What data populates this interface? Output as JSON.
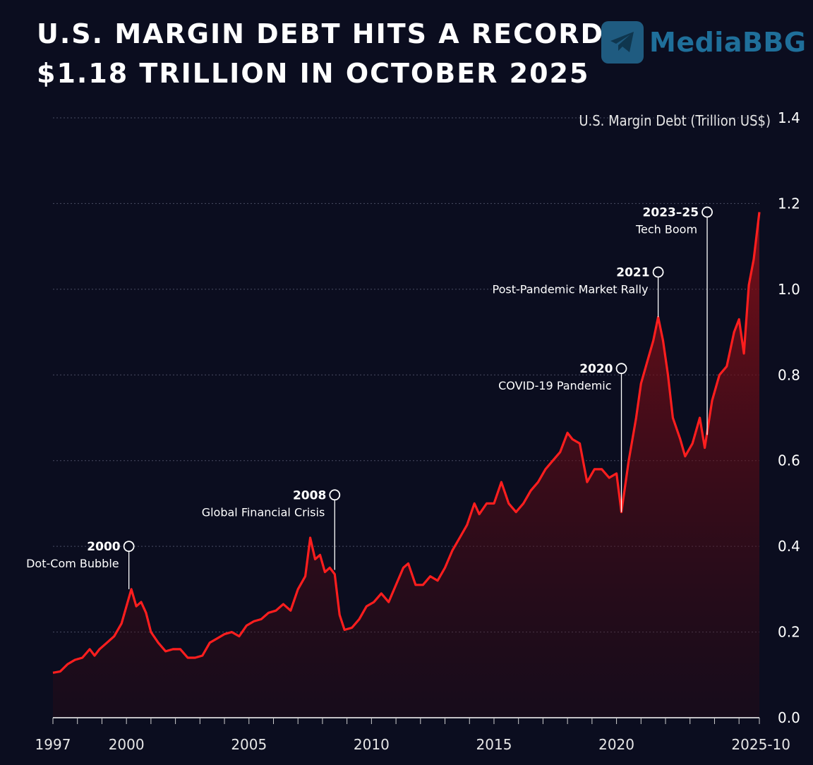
{
  "header": {
    "title_line1": "U.S. MARGIN DEBT HITS A RECORD",
    "title_line2": "$1.18 TRILLION IN OCTOBER 2025"
  },
  "logo": {
    "text": "MediaBBG",
    "icon": "telegram-plane-icon",
    "color": "#1f6f9a"
  },
  "colors": {
    "background": "#0b0d1f",
    "line": "#ff1e1e",
    "fill": "#7a0d14",
    "grid": "#4a4d63"
  },
  "chart_data": {
    "type": "area",
    "title": "U.S. MARGIN DEBT HITS A RECORD $1.18 TRILLION IN OCTOBER 2025",
    "ylabel": "U.S. Margin Debt (Trillion US$)",
    "ylim": [
      0,
      1.4
    ],
    "xlim": [
      1997,
      2025.83
    ],
    "yticks": [
      "0.0",
      "0.2",
      "0.4",
      "0.6",
      "0.8",
      "1.0",
      "1.2",
      "1.4"
    ],
    "xticks": [
      {
        "value": 1997,
        "label": "1997"
      },
      {
        "value": 2000,
        "label": "2000"
      },
      {
        "value": 2005,
        "label": "2005"
      },
      {
        "value": 2010,
        "label": "2010"
      },
      {
        "value": 2015,
        "label": "2015"
      },
      {
        "value": 2020,
        "label": "2020"
      },
      {
        "value": 2025.83,
        "label": "2025-10"
      }
    ],
    "grid": true,
    "series": [
      {
        "points": [
          [
            1997.0,
            0.105
          ],
          [
            1997.3,
            0.108
          ],
          [
            1997.6,
            0.125
          ],
          [
            1997.9,
            0.135
          ],
          [
            1998.2,
            0.14
          ],
          [
            1998.5,
            0.16
          ],
          [
            1998.7,
            0.145
          ],
          [
            1998.9,
            0.16
          ],
          [
            1999.2,
            0.175
          ],
          [
            1999.5,
            0.19
          ],
          [
            1999.8,
            0.22
          ],
          [
            2000.0,
            0.26
          ],
          [
            2000.2,
            0.3
          ],
          [
            2000.4,
            0.26
          ],
          [
            2000.6,
            0.27
          ],
          [
            2000.8,
            0.245
          ],
          [
            2001.0,
            0.2
          ],
          [
            2001.3,
            0.175
          ],
          [
            2001.6,
            0.155
          ],
          [
            2001.9,
            0.16
          ],
          [
            2002.2,
            0.16
          ],
          [
            2002.5,
            0.14
          ],
          [
            2002.8,
            0.14
          ],
          [
            2003.1,
            0.145
          ],
          [
            2003.4,
            0.175
          ],
          [
            2003.7,
            0.185
          ],
          [
            2004.0,
            0.195
          ],
          [
            2004.3,
            0.2
          ],
          [
            2004.6,
            0.19
          ],
          [
            2004.9,
            0.215
          ],
          [
            2005.2,
            0.225
          ],
          [
            2005.5,
            0.23
          ],
          [
            2005.8,
            0.245
          ],
          [
            2006.1,
            0.25
          ],
          [
            2006.4,
            0.265
          ],
          [
            2006.7,
            0.25
          ],
          [
            2007.0,
            0.3
          ],
          [
            2007.3,
            0.33
          ],
          [
            2007.5,
            0.42
          ],
          [
            2007.7,
            0.37
          ],
          [
            2007.9,
            0.38
          ],
          [
            2008.1,
            0.34
          ],
          [
            2008.3,
            0.35
          ],
          [
            2008.5,
            0.335
          ],
          [
            2008.7,
            0.24
          ],
          [
            2008.9,
            0.205
          ],
          [
            2009.2,
            0.21
          ],
          [
            2009.5,
            0.23
          ],
          [
            2009.8,
            0.26
          ],
          [
            2010.1,
            0.27
          ],
          [
            2010.4,
            0.29
          ],
          [
            2010.7,
            0.27
          ],
          [
            2011.0,
            0.31
          ],
          [
            2011.3,
            0.35
          ],
          [
            2011.5,
            0.36
          ],
          [
            2011.8,
            0.31
          ],
          [
            2012.1,
            0.31
          ],
          [
            2012.4,
            0.33
          ],
          [
            2012.7,
            0.32
          ],
          [
            2013.0,
            0.35
          ],
          [
            2013.3,
            0.39
          ],
          [
            2013.6,
            0.42
          ],
          [
            2013.9,
            0.45
          ],
          [
            2014.2,
            0.5
          ],
          [
            2014.4,
            0.475
          ],
          [
            2014.7,
            0.5
          ],
          [
            2015.0,
            0.5
          ],
          [
            2015.3,
            0.55
          ],
          [
            2015.6,
            0.5
          ],
          [
            2015.9,
            0.48
          ],
          [
            2016.2,
            0.5
          ],
          [
            2016.5,
            0.53
          ],
          [
            2016.8,
            0.55
          ],
          [
            2017.1,
            0.58
          ],
          [
            2017.4,
            0.6
          ],
          [
            2017.7,
            0.62
          ],
          [
            2018.0,
            0.665
          ],
          [
            2018.2,
            0.65
          ],
          [
            2018.5,
            0.64
          ],
          [
            2018.8,
            0.55
          ],
          [
            2019.1,
            0.58
          ],
          [
            2019.4,
            0.58
          ],
          [
            2019.7,
            0.56
          ],
          [
            2020.0,
            0.57
          ],
          [
            2020.2,
            0.48
          ],
          [
            2020.5,
            0.6
          ],
          [
            2020.8,
            0.7
          ],
          [
            2021.0,
            0.78
          ],
          [
            2021.3,
            0.84
          ],
          [
            2021.5,
            0.88
          ],
          [
            2021.7,
            0.935
          ],
          [
            2021.9,
            0.88
          ],
          [
            2022.1,
            0.8
          ],
          [
            2022.3,
            0.7
          ],
          [
            2022.6,
            0.65
          ],
          [
            2022.8,
            0.61
          ],
          [
            2023.1,
            0.64
          ],
          [
            2023.4,
            0.7
          ],
          [
            2023.6,
            0.63
          ],
          [
            2023.9,
            0.74
          ],
          [
            2024.2,
            0.8
          ],
          [
            2024.5,
            0.82
          ],
          [
            2024.8,
            0.9
          ],
          [
            2025.0,
            0.93
          ],
          [
            2025.2,
            0.85
          ],
          [
            2025.4,
            1.01
          ],
          [
            2025.6,
            1.07
          ],
          [
            2025.83,
            1.18
          ]
        ]
      }
    ],
    "annotations": [
      {
        "year": "2000",
        "text": "Dot-Com Bubble",
        "x": 2000.1,
        "y": 0.3,
        "label_y": 0.4
      },
      {
        "year": "2008",
        "text": "Global Financial Crisis",
        "x": 2008.5,
        "y": 0.345,
        "label_y": 0.52
      },
      {
        "year": "2020",
        "text": "COVID-19 Pandemic",
        "x": 2020.2,
        "y": 0.48,
        "label_y": 0.815
      },
      {
        "year": "2021",
        "text": "Post-Pandemic Market Rally",
        "x": 2021.7,
        "y": 0.935,
        "label_y": 1.04
      },
      {
        "year": "2023–25",
        "text": "Tech Boom",
        "x": 2023.7,
        "y": 0.66,
        "label_y": 1.18
      }
    ]
  }
}
